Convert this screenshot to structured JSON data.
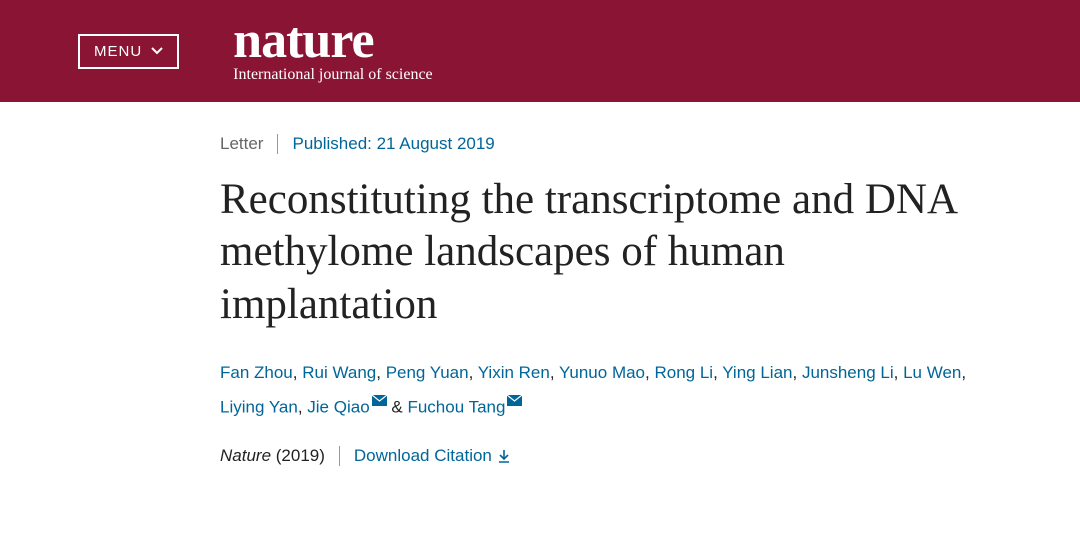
{
  "header": {
    "menu_label": "MENU",
    "brand_name": "nature",
    "brand_tagline": "International journal of science",
    "bg_color": "#8a1433",
    "text_color": "#ffffff"
  },
  "article": {
    "type_label": "Letter",
    "published_label": "Published: 21 August 2019",
    "title": "Reconstituting the transcriptome and DNA methylome landscapes of human implantation",
    "authors": [
      "Fan Zhou",
      "Rui Wang",
      "Peng Yuan",
      "Yixin Ren",
      "Yunuo Mao",
      "Rong Li",
      "Ying Lian",
      "Junsheng Li",
      "Lu Wen",
      "Liying Yan",
      "Jie Qiao",
      "Fuchou Tang"
    ],
    "corresponding_indices": [
      10,
      11
    ],
    "journal_name": "Nature",
    "journal_year": "(2019)",
    "download_label": "Download Citation"
  },
  "colors": {
    "link": "#006699",
    "muted": "#666666",
    "text": "#222222",
    "divider": "#999999"
  }
}
